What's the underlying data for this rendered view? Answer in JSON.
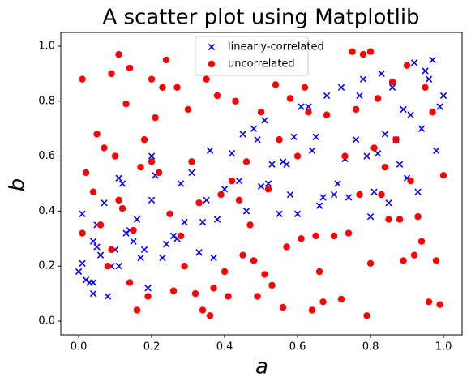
{
  "chart_data": {
    "type": "scatter",
    "title": "A scatter plot using Matplotlib",
    "x_label": "a",
    "y_label": "b",
    "xlim": [
      -0.049,
      1.051
    ],
    "ylim": [
      -0.05,
      1.05
    ],
    "xticks": [
      {
        "value": 0,
        "label": "0.0"
      },
      0.2,
      0.4,
      0.6,
      0.8,
      {
        "value": 1,
        "label": "1.0"
      }
    ],
    "yticks": [
      {
        "value": 0,
        "label": "0.0"
      },
      0.2,
      0.4,
      0.6,
      0.8,
      {
        "value": 1,
        "label": "1.0"
      }
    ],
    "grid": false,
    "legend": "upper center",
    "series": [
      {
        "name": "linearly-correlated",
        "color": "#0000ff",
        "marker": "x",
        "x": [
          0.01,
          0.01,
          0.0,
          0.02,
          0.03,
          0.04,
          0.04,
          0.04,
          0.05,
          0.06,
          0.05,
          0.07,
          0.08,
          0.09,
          0.1,
          0.11,
          0.11,
          0.12,
          0.13,
          0.14,
          0.15,
          0.16,
          0.17,
          0.18,
          0.19,
          0.2,
          0.2,
          0.21,
          0.23,
          0.24,
          0.26,
          0.27,
          0.28,
          0.29,
          0.31,
          0.33,
          0.34,
          0.35,
          0.36,
          0.37,
          0.38,
          0.4,
          0.42,
          0.44,
          0.45,
          0.46,
          0.48,
          0.49,
          0.5,
          0.51,
          0.52,
          0.53,
          0.55,
          0.56,
          0.57,
          0.58,
          0.59,
          0.6,
          0.61,
          0.63,
          0.64,
          0.65,
          0.66,
          0.67,
          0.68,
          0.7,
          0.71,
          0.72,
          0.73,
          0.74,
          0.76,
          0.77,
          0.78,
          0.79,
          0.8,
          0.81,
          0.82,
          0.83,
          0.84,
          0.85,
          0.86,
          0.87,
          0.88,
          0.89,
          0.9,
          0.91,
          0.92,
          0.93,
          0.94,
          0.95,
          0.96,
          0.97,
          0.98,
          0.99,
          1.0
        ],
        "y": [
          0.39,
          0.21,
          0.18,
          0.15,
          0.14,
          0.14,
          0.1,
          0.29,
          0.27,
          0.24,
          0.35,
          0.43,
          0.09,
          0.2,
          0.26,
          0.2,
          0.52,
          0.5,
          0.32,
          0.33,
          0.29,
          0.37,
          0.23,
          0.26,
          0.12,
          0.44,
          0.6,
          0.53,
          0.23,
          0.28,
          0.31,
          0.3,
          0.5,
          0.36,
          0.54,
          0.25,
          0.36,
          0.44,
          0.62,
          0.23,
          0.37,
          0.48,
          0.61,
          0.51,
          0.68,
          0.4,
          0.7,
          0.66,
          0.49,
          0.73,
          0.5,
          0.57,
          0.39,
          0.58,
          0.57,
          0.46,
          0.67,
          0.39,
          0.78,
          0.78,
          0.62,
          0.67,
          0.42,
          0.45,
          0.82,
          0.46,
          0.5,
          0.85,
          0.59,
          0.45,
          0.66,
          0.82,
          0.88,
          0.6,
          0.38,
          0.47,
          0.61,
          0.9,
          0.68,
          0.43,
          0.85,
          0.66,
          0.57,
          0.77,
          0.52,
          0.75,
          0.94,
          0.47,
          0.7,
          0.91,
          0.88,
          0.95,
          0.62,
          0.78,
          0.82
        ]
      },
      {
        "name": "uncorrelated",
        "color": "#ff0000",
        "marker": "o",
        "x": [
          0.01,
          0.01,
          0.02,
          0.04,
          0.05,
          0.06,
          0.07,
          0.08,
          0.09,
          0.09,
          0.1,
          0.11,
          0.11,
          0.12,
          0.13,
          0.14,
          0.14,
          0.15,
          0.16,
          0.17,
          0.18,
          0.19,
          0.2,
          0.2,
          0.21,
          0.22,
          0.23,
          0.24,
          0.25,
          0.26,
          0.27,
          0.28,
          0.29,
          0.3,
          0.31,
          0.32,
          0.33,
          0.34,
          0.35,
          0.36,
          0.37,
          0.38,
          0.39,
          0.4,
          0.41,
          0.42,
          0.43,
          0.44,
          0.45,
          0.46,
          0.47,
          0.48,
          0.49,
          0.5,
          0.51,
          0.52,
          0.53,
          0.54,
          0.55,
          0.56,
          0.57,
          0.58,
          0.6,
          0.61,
          0.62,
          0.63,
          0.64,
          0.65,
          0.66,
          0.67,
          0.68,
          0.7,
          0.72,
          0.73,
          0.74,
          0.75,
          0.76,
          0.77,
          0.78,
          0.79,
          0.8,
          0.8,
          0.81,
          0.82,
          0.83,
          0.84,
          0.85,
          0.86,
          0.87,
          0.88,
          0.89,
          0.9,
          0.91,
          0.92,
          0.93,
          0.94,
          0.95,
          0.96,
          0.97,
          0.98,
          0.99,
          1.0
        ],
        "y": [
          0.32,
          0.88,
          0.54,
          0.47,
          0.68,
          0.35,
          0.63,
          0.2,
          0.26,
          0.9,
          0.6,
          0.44,
          0.97,
          0.41,
          0.79,
          0.14,
          0.92,
          0.33,
          0.04,
          0.56,
          0.66,
          0.09,
          0.88,
          0.58,
          0.74,
          0.54,
          0.85,
          0.95,
          0.39,
          0.11,
          0.85,
          0.31,
          0.2,
          0.77,
          0.58,
          0.1,
          0.43,
          0.04,
          0.88,
          0.02,
          0.12,
          0.82,
          0.46,
          0.18,
          0.09,
          0.51,
          0.8,
          0.44,
          0.24,
          0.58,
          0.35,
          0.22,
          0.09,
          0.76,
          0.17,
          0.48,
          0.13,
          0.86,
          0.66,
          0.05,
          0.27,
          0.81,
          0.6,
          0.3,
          0.85,
          0.76,
          0.04,
          0.31,
          0.18,
          0.07,
          0.75,
          0.31,
          0.08,
          0.6,
          0.32,
          0.98,
          0.77,
          0.46,
          0.97,
          0.02,
          0.21,
          0.98,
          0.63,
          0.81,
          0.46,
          0.56,
          0.37,
          0.87,
          0.66,
          0.37,
          0.22,
          0.93,
          0.51,
          0.24,
          0.38,
          0.29,
          0.85,
          0.07,
          0.76,
          0.22,
          0.06,
          0.53
        ]
      }
    ]
  }
}
